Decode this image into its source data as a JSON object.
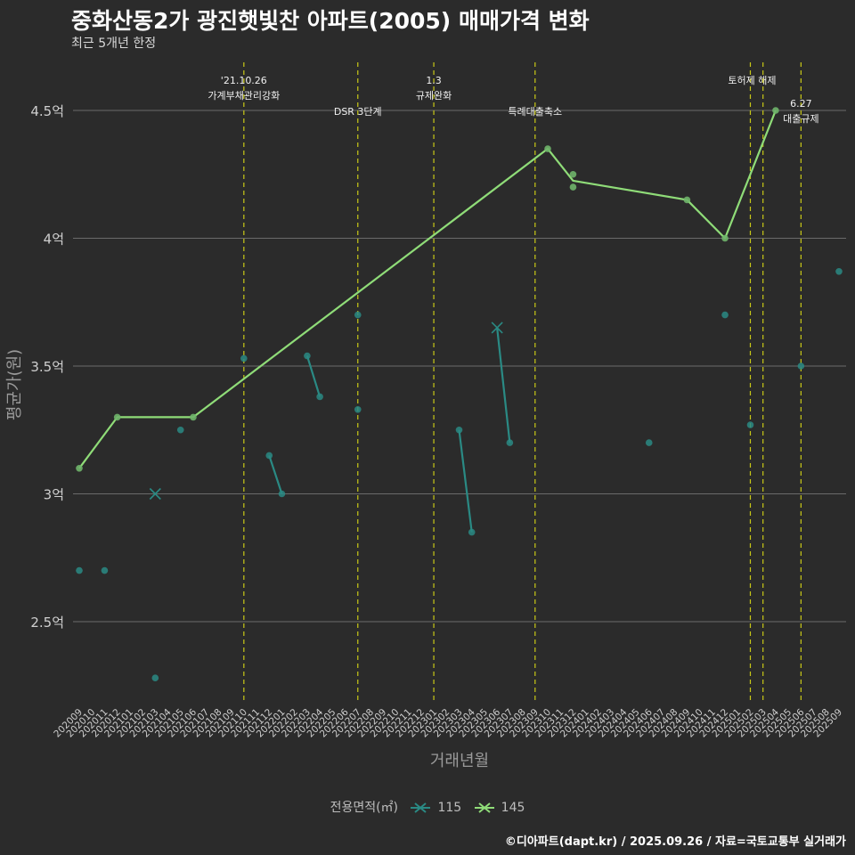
{
  "header": {
    "title": "중화산동2가 광진햇빛찬 아파트(2005) 매매가격 변화",
    "subtitle": "최근 5개년 한정"
  },
  "caption": "©디아파트(dapt.kr) / 2025.09.26 / 자료=국토교통부 실거래가",
  "colors": {
    "background": "#2b2b2b",
    "grid": "#6b6b6b",
    "event_line": "#c9c917",
    "series_115": "#2a8a84",
    "series_145": "#8fdc78"
  },
  "chart_data": {
    "type": "line",
    "xlabel": "거래년월",
    "ylabel": "평균가(원)",
    "ylim": [
      2.15,
      4.68
    ],
    "categories": [
      "202009",
      "202010",
      "202011",
      "202012",
      "202101",
      "202102",
      "202103",
      "202104",
      "202105",
      "202106",
      "202107",
      "202108",
      "202109",
      "202110",
      "202111",
      "202112",
      "202201",
      "202202",
      "202203",
      "202204",
      "202205",
      "202206",
      "202207",
      "202208",
      "202209",
      "202210",
      "202211",
      "202212",
      "202301",
      "202302",
      "202303",
      "202304",
      "202305",
      "202306",
      "202307",
      "202308",
      "202309",
      "202310",
      "202311",
      "202312",
      "202401",
      "202402",
      "202403",
      "202404",
      "202405",
      "202406",
      "202407",
      "202408",
      "202409",
      "202410",
      "202411",
      "202412",
      "202501",
      "202502",
      "202503",
      "202504",
      "202505",
      "202506",
      "202507",
      "202508",
      "202509"
    ],
    "yticks": [
      {
        "value": 2.5,
        "label": "2.5억"
      },
      {
        "value": 3.0,
        "label": "3억"
      },
      {
        "value": 3.5,
        "label": "3.5억"
      },
      {
        "value": 4.0,
        "label": "4억"
      },
      {
        "value": 4.5,
        "label": "4.5억"
      }
    ],
    "legend": {
      "title": "전용면적(㎡)",
      "entries": [
        {
          "name": "115",
          "series": "115"
        },
        {
          "name": "145",
          "series": "145"
        }
      ]
    },
    "series": [
      {
        "name": "115",
        "line": [
          {
            "x": "202112",
            "y": 3.15
          },
          {
            "x": "202201",
            "y": 3.0
          },
          {
            "x": "202203",
            "y": 3.54
          },
          {
            "x": "202204",
            "y": 3.38
          },
          {
            "x": "202303",
            "y": 3.25
          },
          {
            "x": "202304",
            "y": 2.85
          },
          {
            "x": "202306",
            "y": 3.65
          },
          {
            "x": "202307",
            "y": 3.2
          }
        ],
        "segments": [
          [
            "202112",
            "202201"
          ],
          [
            "202203",
            "202204"
          ],
          [
            "202303",
            "202304"
          ],
          [
            "202306",
            "202307"
          ]
        ],
        "points": [
          {
            "x": "202009",
            "y": 2.7
          },
          {
            "x": "202011",
            "y": 2.7
          },
          {
            "x": "202103",
            "y": 2.28
          },
          {
            "x": "202105",
            "y": 3.25
          },
          {
            "x": "202110",
            "y": 3.53
          },
          {
            "x": "202112",
            "y": 3.15
          },
          {
            "x": "202201",
            "y": 3.0
          },
          {
            "x": "202203",
            "y": 3.54
          },
          {
            "x": "202204",
            "y": 3.38
          },
          {
            "x": "202207",
            "y": 3.7
          },
          {
            "x": "202207",
            "y": 3.33
          },
          {
            "x": "202303",
            "y": 3.25
          },
          {
            "x": "202304",
            "y": 2.85
          },
          {
            "x": "202307",
            "y": 3.2
          },
          {
            "x": "202406",
            "y": 3.2
          },
          {
            "x": "202412",
            "y": 3.7
          },
          {
            "x": "202502",
            "y": 3.27
          },
          {
            "x": "202506",
            "y": 3.5
          },
          {
            "x": "202509",
            "y": 3.87
          }
        ],
        "crosses": [
          {
            "x": "202103",
            "y": 3.0
          },
          {
            "x": "202306",
            "y": 3.65
          }
        ]
      },
      {
        "name": "145",
        "line": [
          {
            "x": "202009",
            "y": 3.1
          },
          {
            "x": "202012",
            "y": 3.3
          },
          {
            "x": "202106",
            "y": 3.3
          },
          {
            "x": "202310",
            "y": 4.35
          },
          {
            "x": "202312",
            "y": 4.225
          },
          {
            "x": "202409",
            "y": 4.15
          },
          {
            "x": "202412",
            "y": 4.0
          },
          {
            "x": "202504",
            "y": 4.5
          }
        ],
        "points": [
          {
            "x": "202009",
            "y": 3.1
          },
          {
            "x": "202012",
            "y": 3.3
          },
          {
            "x": "202106",
            "y": 3.3
          },
          {
            "x": "202310",
            "y": 4.35
          },
          {
            "x": "202312",
            "y": 4.25
          },
          {
            "x": "202312",
            "y": 4.2
          },
          {
            "x": "202409",
            "y": 4.15
          },
          {
            "x": "202412",
            "y": 4.0
          },
          {
            "x": "202504",
            "y": 4.5
          }
        ]
      }
    ],
    "events": [
      {
        "x": "202110",
        "lines": [
          "'21.10.26",
          "가계부채관리강화"
        ],
        "level": 1
      },
      {
        "x": "202207",
        "lines": [
          "DSR 3단계"
        ],
        "level": 2
      },
      {
        "x": "202301",
        "lines": [
          "1.3",
          "규제완화"
        ],
        "level": 1
      },
      {
        "x": "202309",
        "lines": [
          "특례대출축소"
        ],
        "level": 2
      },
      {
        "x": "202502",
        "lines": [
          "토허제 해제"
        ],
        "level": 1,
        "anchor": "end"
      },
      {
        "x": "202503",
        "lines": [],
        "level": 1
      },
      {
        "x": "202506",
        "lines": [
          "6.27",
          "대출규제"
        ],
        "level": 3
      }
    ]
  }
}
